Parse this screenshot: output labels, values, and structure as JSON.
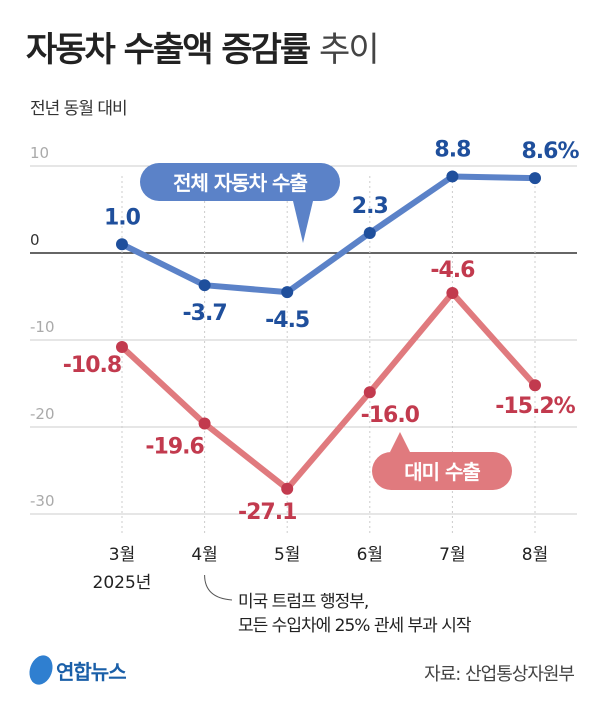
{
  "title": {
    "main": "자동차 수출액 증감률",
    "sub": "추이"
  },
  "unit_label": "전년 동월 대비",
  "chart_data": {
    "type": "line",
    "categories": [
      "3월",
      "4월",
      "5월",
      "6월",
      "7월",
      "8월"
    ],
    "year_label": "2025년",
    "ylim": [
      -30,
      10
    ],
    "yticks": [
      10,
      0,
      -10,
      -20,
      -30
    ],
    "grid": true,
    "series": [
      {
        "name": "전체 자동차 수출",
        "color": "#5b82c8",
        "label_color": "#1f4f9c",
        "values": [
          1.0,
          -3.7,
          -4.5,
          2.3,
          8.8,
          8.6
        ],
        "labels": [
          "1.0",
          "-3.7",
          "-4.5",
          "2.3",
          "8.8",
          "8.6%"
        ]
      },
      {
        "name": "대미 수출",
        "color": "#e07a7e",
        "label_color": "#c23a4e",
        "values": [
          -10.8,
          -19.6,
          -27.1,
          -16.0,
          -4.6,
          -15.2
        ],
        "labels": [
          "-10.8",
          "-19.6",
          "-27.1",
          "-16.0",
          "-4.6",
          "-15.2%"
        ]
      }
    ],
    "annotation": [
      "미국 트럼프 행정부,",
      "모든 수입차에 25% 관세 부과 시작"
    ]
  },
  "source": "자료: 산업통상자원부",
  "logo": "연합뉴스"
}
